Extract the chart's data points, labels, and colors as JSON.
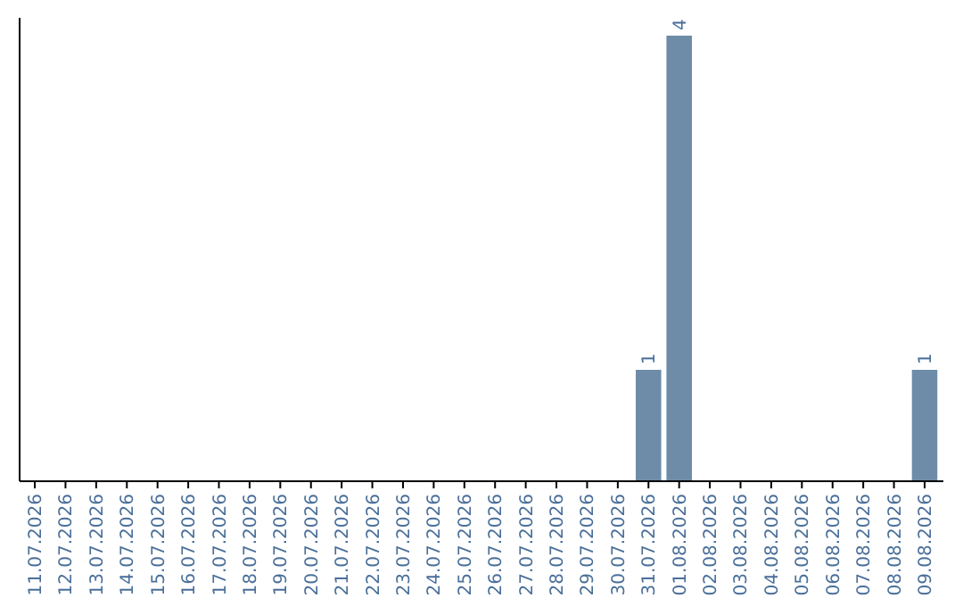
{
  "chart_data": {
    "type": "bar",
    "categories": [
      "11.07.2026",
      "12.07.2026",
      "13.07.2026",
      "14.07.2026",
      "15.07.2026",
      "16.07.2026",
      "17.07.2026",
      "18.07.2026",
      "19.07.2026",
      "20.07.2026",
      "21.07.2026",
      "22.07.2026",
      "23.07.2026",
      "24.07.2026",
      "25.07.2026",
      "26.07.2026",
      "27.07.2026",
      "28.07.2026",
      "29.07.2026",
      "30.07.2026",
      "31.07.2026",
      "01.08.2026",
      "02.08.2026",
      "03.08.2026",
      "04.08.2026",
      "05.08.2026",
      "06.08.2026",
      "07.08.2026",
      "08.08.2026",
      "09.08.2026"
    ],
    "values": [
      null,
      null,
      null,
      null,
      null,
      null,
      null,
      null,
      null,
      null,
      null,
      null,
      null,
      null,
      null,
      null,
      null,
      null,
      null,
      null,
      1,
      4,
      null,
      null,
      null,
      null,
      null,
      null,
      null,
      1
    ],
    "data_labels": true,
    "color": "#6e8ca8",
    "tick_labels": "x"
  }
}
